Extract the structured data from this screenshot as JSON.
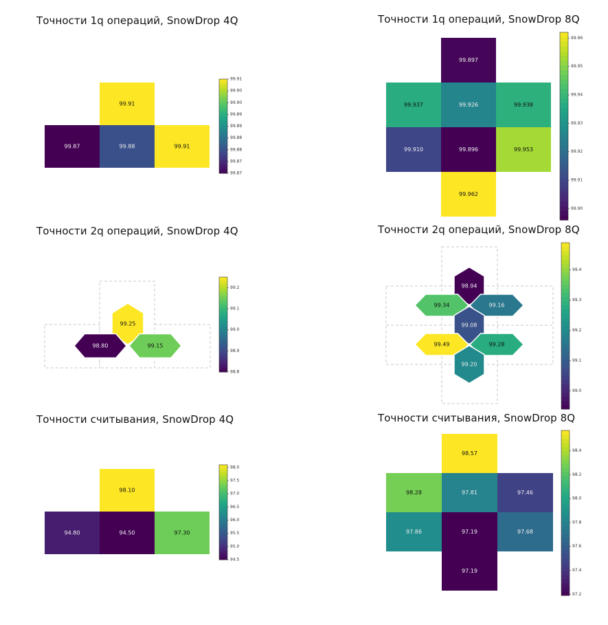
{
  "chart_data": [
    {
      "id": "p1",
      "type": "heatmap",
      "title": "Точности 1q операций, SnowDrop 4Q",
      "shape": "square",
      "cells": [
        {
          "row": 0,
          "col": 1,
          "value": 99.91,
          "label": "99.91"
        },
        {
          "row": 1,
          "col": 0,
          "value": 99.87,
          "label": "99.87"
        },
        {
          "row": 1,
          "col": 1,
          "value": 99.88,
          "label": "99.88"
        },
        {
          "row": 1,
          "col": 2,
          "value": 99.91,
          "label": "99.91"
        }
      ],
      "colorbar": {
        "range": [
          99.87,
          99.91
        ],
        "ticks": [
          "99.91",
          "99.90",
          "99.90",
          "99.89",
          "99.89",
          "99.88",
          "99.88",
          "99.87",
          "99.87"
        ]
      },
      "colormap": "viridis"
    },
    {
      "id": "p2",
      "type": "heatmap",
      "title": "Точности 1q операций, SnowDrop 8Q",
      "shape": "square",
      "cells": [
        {
          "row": 0,
          "col": 1,
          "value": 99.897,
          "label": "99.897"
        },
        {
          "row": 1,
          "col": 0,
          "value": 99.937,
          "label": "99.937"
        },
        {
          "row": 1,
          "col": 1,
          "value": 99.926,
          "label": "99.926"
        },
        {
          "row": 1,
          "col": 2,
          "value": 99.938,
          "label": "99.938"
        },
        {
          "row": 2,
          "col": 0,
          "value": 99.91,
          "label": "99.910"
        },
        {
          "row": 2,
          "col": 1,
          "value": 99.896,
          "label": "99.896"
        },
        {
          "row": 2,
          "col": 2,
          "value": 99.953,
          "label": "99.953"
        },
        {
          "row": 3,
          "col": 1,
          "value": 99.962,
          "label": "99.962"
        }
      ],
      "colorbar": {
        "range": [
          99.896,
          99.962
        ],
        "ticks": [
          "99.96",
          "99.95",
          "99.94",
          "99.93",
          "99.92",
          "99.91",
          "99.90"
        ],
        "tick_values": [
          99.96,
          99.95,
          99.94,
          99.93,
          99.92,
          99.91,
          99.9
        ]
      },
      "colormap": "viridis"
    },
    {
      "id": "p3",
      "type": "heatmap",
      "title": "Точности 2q операций, SnowDrop 4Q",
      "shape": "hexagon-edges",
      "cells": [
        {
          "edge": "vertical-top",
          "value": 99.25,
          "label": "99.25"
        },
        {
          "edge": "horizontal-left",
          "value": 98.8,
          "label": "98.80"
        },
        {
          "edge": "horizontal-right",
          "value": 99.15,
          "label": "99.15"
        }
      ],
      "colorbar": {
        "range": [
          98.8,
          99.25
        ],
        "ticks": [
          "99.2",
          "99.1",
          "99.0",
          "98.9",
          "98.8"
        ],
        "tick_values": [
          99.2,
          99.1,
          99.0,
          98.9,
          98.8
        ]
      },
      "colormap": "viridis"
    },
    {
      "id": "p4",
      "type": "heatmap",
      "title": "Точности 2q операций, SnowDrop 8Q",
      "shape": "hexagon-edges",
      "cells": [
        {
          "edge": "vertical-top",
          "value": 98.94,
          "label": "98.94"
        },
        {
          "edge": "upper-left",
          "value": 99.34,
          "label": "99.34"
        },
        {
          "edge": "upper-right",
          "value": 99.16,
          "label": "99.16"
        },
        {
          "edge": "vertical-middle",
          "value": 99.08,
          "label": "99.08"
        },
        {
          "edge": "lower-left",
          "value": 99.49,
          "label": "99.49"
        },
        {
          "edge": "lower-right",
          "value": 99.28,
          "label": "99.28"
        },
        {
          "edge": "vertical-bottom",
          "value": 99.2,
          "label": "99.20"
        }
      ],
      "colorbar": {
        "range": [
          98.94,
          99.49
        ],
        "ticks": [
          "99.4",
          "99.3",
          "99.2",
          "99.1",
          "99.0"
        ],
        "tick_values": [
          99.4,
          99.3,
          99.2,
          99.1,
          99.0
        ]
      },
      "colormap": "viridis"
    },
    {
      "id": "p5",
      "type": "heatmap",
      "title": "Точности считывания, SnowDrop 4Q",
      "shape": "square",
      "cells": [
        {
          "row": 0,
          "col": 1,
          "value": 98.1,
          "label": "98.10"
        },
        {
          "row": 1,
          "col": 0,
          "value": 94.8,
          "label": "94.80"
        },
        {
          "row": 1,
          "col": 1,
          "value": 94.5,
          "label": "94.50"
        },
        {
          "row": 1,
          "col": 2,
          "value": 97.3,
          "label": "97.30"
        }
      ],
      "colorbar": {
        "range": [
          94.5,
          98.1
        ],
        "ticks": [
          "98.0",
          "97.5",
          "97.0",
          "96.5",
          "96.0",
          "95.5",
          "95.0",
          "94.5"
        ],
        "tick_values": [
          98.0,
          97.5,
          97.0,
          96.5,
          96.0,
          95.5,
          95.0,
          94.5
        ]
      },
      "colormap": "viridis"
    },
    {
      "id": "p6",
      "type": "heatmap",
      "title": "Точности считывания, SnowDrop 8Q",
      "shape": "square",
      "cells": [
        {
          "row": 0,
          "col": 1,
          "value": 98.57,
          "label": "98.57"
        },
        {
          "row": 1,
          "col": 0,
          "value": 98.28,
          "label": "98.28"
        },
        {
          "row": 1,
          "col": 1,
          "value": 97.81,
          "label": "97.81"
        },
        {
          "row": 1,
          "col": 2,
          "value": 97.46,
          "label": "97.46"
        },
        {
          "row": 2,
          "col": 0,
          "value": 97.86,
          "label": "97.86"
        },
        {
          "row": 2,
          "col": 1,
          "value": 97.19,
          "label": "97.19"
        },
        {
          "row": 2,
          "col": 2,
          "value": 97.68,
          "label": "97.68"
        },
        {
          "row": 3,
          "col": 1,
          "value": 97.19,
          "label": "97.19"
        }
      ],
      "colorbar": {
        "range": [
          97.19,
          98.57
        ],
        "ticks": [
          "98.4",
          "98.2",
          "98.0",
          "97.8",
          "97.6",
          "97.4",
          "97.2"
        ],
        "tick_values": [
          98.4,
          98.2,
          98.0,
          97.8,
          97.6,
          97.4,
          97.2
        ]
      },
      "colormap": "viridis"
    }
  ]
}
